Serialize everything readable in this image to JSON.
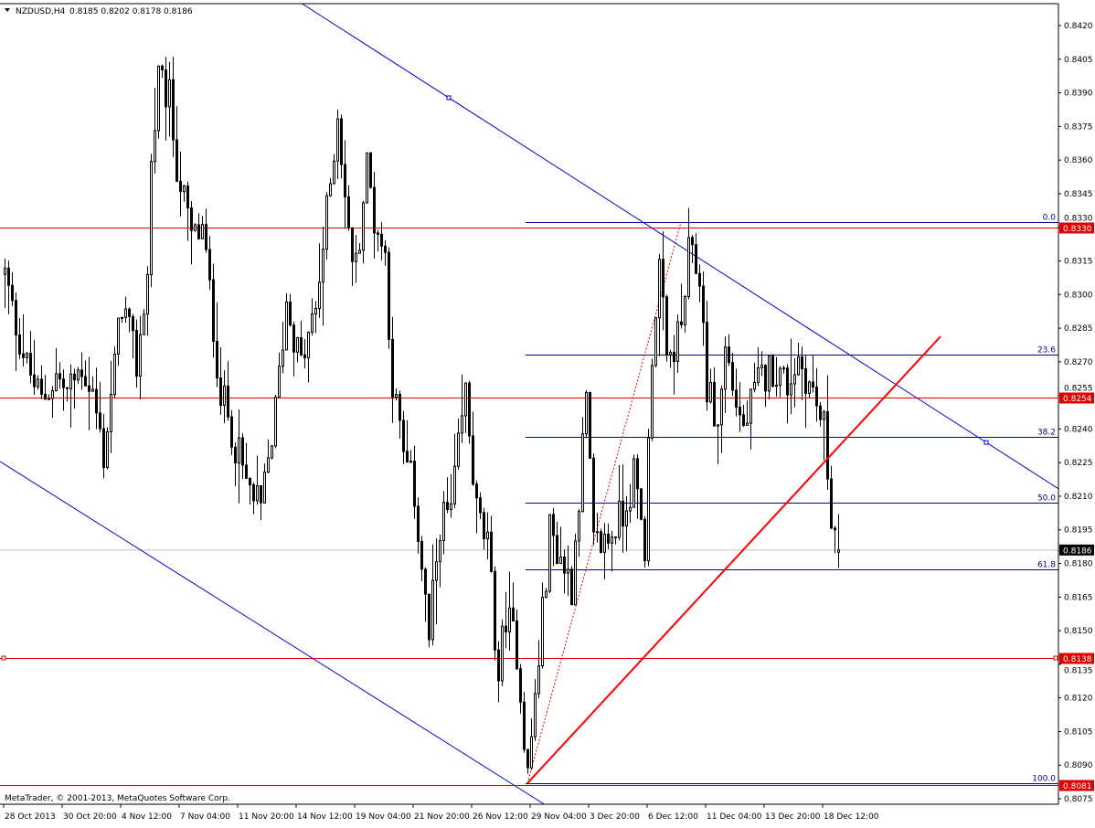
{
  "header": {
    "symbol": "NZDUSD,H4",
    "ohlc": "0.8185 0.8202 0.8178 0.8186",
    "menu_icon": "triangle-down-icon"
  },
  "copyright": "MetaTrader, © 2001-2013, MetaQuotes Software Corp.",
  "chart_data": {
    "type": "candlestick",
    "symbol": "NZDUSD",
    "timeframe": "H4",
    "ylim": [
      0.8069,
      0.8429
    ],
    "y_ticks": [
      "0.8420",
      "0.8405",
      "0.8390",
      "0.8375",
      "0.8360",
      "0.8345",
      "0.8330",
      "0.8315",
      "0.8300",
      "0.8285",
      "0.8270",
      "0.8255",
      "0.8240",
      "0.8225",
      "0.8210",
      "0.8195",
      "0.8180",
      "0.8165",
      "0.8150",
      "0.8135",
      "0.8120",
      "0.8105",
      "0.8090",
      "0.8075"
    ],
    "x_ticks": [
      "28 Oct 2013",
      "30 Oct 20:00",
      "4 Nov 12:00",
      "7 Nov 04:00",
      "11 Nov 20:00",
      "14 Nov 12:00",
      "19 Nov 04:00",
      "21 Nov 20:00",
      "26 Nov 12:00",
      "29 Nov 04:00",
      "3 Dec 20:00",
      "6 Dec 12:00",
      "11 Dec 04:00",
      "13 Dec 20:00",
      "18 Dec 12:00"
    ],
    "bar_count": 229,
    "close_path_bar_price": [
      [
        0,
        0.8309
      ],
      [
        2,
        0.8293
      ],
      [
        6,
        0.8268
      ],
      [
        10,
        0.8252
      ],
      [
        14,
        0.8264
      ],
      [
        17,
        0.8256
      ],
      [
        21,
        0.8268
      ],
      [
        24,
        0.8256
      ],
      [
        27,
        0.8228
      ],
      [
        30,
        0.8268
      ],
      [
        32,
        0.8297
      ],
      [
        36,
        0.8268
      ],
      [
        39,
        0.8309
      ],
      [
        40,
        0.8358
      ],
      [
        42,
        0.8395
      ],
      [
        45,
        0.8387
      ],
      [
        47,
        0.8358
      ],
      [
        51,
        0.8325
      ],
      [
        54,
        0.8329
      ],
      [
        56,
        0.8301
      ],
      [
        59,
        0.8256
      ],
      [
        62,
        0.824
      ],
      [
        66,
        0.8215
      ],
      [
        70,
        0.8203
      ],
      [
        74,
        0.8248
      ],
      [
        77,
        0.8297
      ],
      [
        81,
        0.8268
      ],
      [
        85,
        0.8293
      ],
      [
        89,
        0.835
      ],
      [
        91,
        0.8382
      ],
      [
        94,
        0.8325
      ],
      [
        96,
        0.8313
      ],
      [
        99,
        0.8358
      ],
      [
        101,
        0.8334
      ],
      [
        104,
        0.8317
      ],
      [
        106,
        0.826
      ],
      [
        109,
        0.8228
      ],
      [
        112,
        0.8211
      ],
      [
        116,
        0.8146
      ],
      [
        119,
        0.8199
      ],
      [
        122,
        0.8203
      ],
      [
        126,
        0.8256
      ],
      [
        129,
        0.8203
      ],
      [
        132,
        0.8187
      ],
      [
        135,
        0.813
      ],
      [
        137,
        0.8158
      ],
      [
        140,
        0.8142
      ],
      [
        143,
        0.8085
      ],
      [
        146,
        0.8138
      ],
      [
        149,
        0.8195
      ],
      [
        151,
        0.8187
      ],
      [
        155,
        0.817
      ],
      [
        159,
        0.8252
      ],
      [
        161,
        0.8187
      ],
      [
        165,
        0.8191
      ],
      [
        169,
        0.8203
      ],
      [
        172,
        0.8219
      ],
      [
        175,
        0.8187
      ],
      [
        177,
        0.8276
      ],
      [
        179,
        0.8313
      ],
      [
        181,
        0.8268
      ],
      [
        185,
        0.8285
      ],
      [
        187,
        0.8317
      ],
      [
        190,
        0.8309
      ],
      [
        192,
        0.826
      ],
      [
        195,
        0.824
      ],
      [
        197,
        0.8276
      ],
      [
        200,
        0.8252
      ],
      [
        202,
        0.824
      ],
      [
        206,
        0.826
      ],
      [
        210,
        0.8268
      ],
      [
        214,
        0.826
      ],
      [
        217,
        0.8272
      ],
      [
        221,
        0.8256
      ],
      [
        224,
        0.824
      ],
      [
        226,
        0.8203
      ],
      [
        228,
        0.8186
      ]
    ],
    "last_bar": {
      "open": 0.8185,
      "high": 0.8202,
      "low": 0.8178,
      "close": 0.8186
    },
    "bid": {
      "price": 0.8186,
      "label": "0.8186",
      "color": "#c0c0c0"
    },
    "horizontal_lines": [
      {
        "price": 0.833,
        "label": "0.8330",
        "color": "#e00000"
      },
      {
        "price": 0.8254,
        "label": "0.8254",
        "color": "#e00000"
      },
      {
        "price": 0.8138,
        "label": "0.8138",
        "color": "#e00000"
      },
      {
        "price": 0.8081,
        "label": "0.8081",
        "color": "#e00000"
      }
    ],
    "fibonacci": {
      "from": [
        143,
        0.80819
      ],
      "to": [
        185,
        0.83323
      ],
      "color": "#00008b",
      "trend_color": "#e00000",
      "levels": [
        {
          "ratio": 0.0,
          "label": "0.0"
        },
        {
          "ratio": 0.236,
          "label": "23.6"
        },
        {
          "ratio": 0.382,
          "label": "38.2"
        },
        {
          "ratio": 0.5,
          "label": "50.0"
        },
        {
          "ratio": 0.618,
          "label": "61.8"
        },
        {
          "ratio": 1.0,
          "label": "100.0"
        }
      ]
    },
    "channel": {
      "color": "#0000cd",
      "upper": [
        [
          121.5,
          0.83878
        ],
        [
          268.5,
          0.8234
        ]
      ],
      "lower": [
        [
          -1.25,
          0.82255
        ],
        [
          150,
          0.80701
        ]
      ]
    },
    "trendline": {
      "points": [
        [
          143,
          0.80819
        ],
        [
          256,
          0.82813
        ]
      ],
      "color": "#ff0000"
    },
    "colors": {
      "bull_body": "#ffffff",
      "bear_body": "#000000",
      "outline": "#000000"
    }
  }
}
